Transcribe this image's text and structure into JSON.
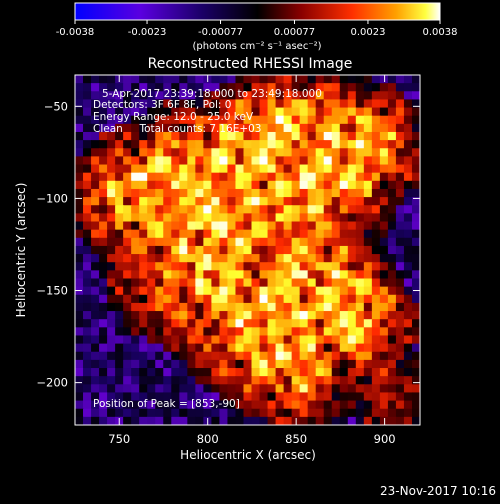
{
  "colors": {
    "background": "#000000",
    "text": "#ffffff",
    "colormap": [
      "#0000ff",
      "#6a00d8",
      "#1a0066",
      "#000000",
      "#7a0000",
      "#ff2a00",
      "#ff9a00",
      "#ffff30",
      "#ffffff"
    ]
  },
  "colorbar": {
    "min": -0.0038,
    "max": 0.0038,
    "tick_values": [
      -0.0038,
      -0.0023,
      -0.00077,
      0.00077,
      0.0023,
      0.0038
    ],
    "tick_labels": [
      "-0.0038",
      "-0.0023",
      "-0.00077",
      "0.00077",
      "0.0023",
      "0.0038"
    ],
    "unit_label": "(photons cm⁻² s⁻¹ asec⁻²)"
  },
  "header": {
    "title": "Reconstructed RHESSI Image"
  },
  "overlay": {
    "time_line": "5-Apr-2017 23:39:18.000 to 23:49:18.000",
    "detectors_line": "Detectors: 3F 6F 8F, Pol: 0",
    "energy_line": "Energy Range: 12.0 - 25.0 keV",
    "clean_line": "Clean     Total counts: 7.16E+03",
    "peak_line": "Position of Peak = [853,-90]"
  },
  "footer": {
    "timestamp": "23-Nov-2017 10:16"
  },
  "chart_data": {
    "type": "heatmap",
    "title": "Reconstructed RHESSI Image",
    "xlabel": "Heliocentric X (arcsec)",
    "ylabel": "Heliocentric Y (arcsec)",
    "xlim": [
      725,
      920
    ],
    "ylim": [
      -223,
      -33
    ],
    "x_ticks": [
      750,
      800,
      850,
      900
    ],
    "x_tick_labels": [
      "750",
      "800",
      "850",
      "900"
    ],
    "y_ticks": [
      -50,
      -100,
      -150,
      -200
    ],
    "y_tick_labels": [
      "−50",
      "−100",
      "−150",
      "−200"
    ],
    "grid": false,
    "peak_position": [
      853,
      -90
    ],
    "colorbar_range": [
      -0.0038,
      0.0038
    ]
  }
}
